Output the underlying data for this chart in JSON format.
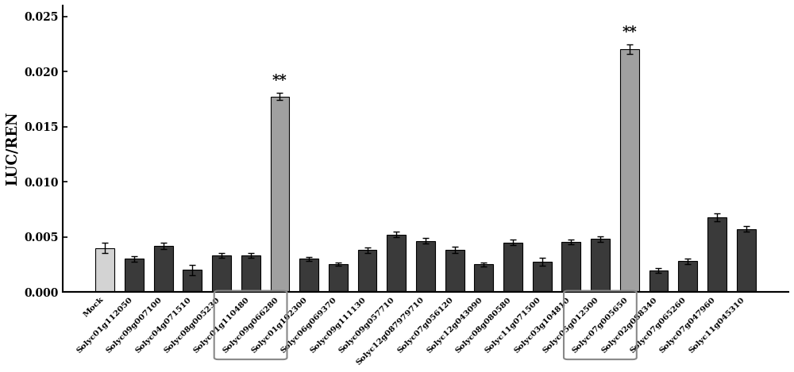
{
  "categories": [
    "Mock",
    "Solyc01g112050",
    "Solyc09g007100",
    "Solyc04g071510",
    "Solyc08g005230",
    "Solyc01g110480",
    "Solyc09g066280",
    "Solyc01g102300",
    "Solyc06g069370",
    "Solyc09g111130",
    "Solyc09g057710",
    "Solyc12g087979710",
    "Solyc07g056120",
    "Solyc12g043090",
    "Solyc08g080580",
    "Solyc11g071500",
    "Solyc03g104810",
    "Solyc05g012500",
    "Solyc07g005650",
    "Solyc02g088340",
    "Solyc07g065260",
    "Solyc07g047960",
    "Solyc11g045310"
  ],
  "values": [
    0.004,
    0.003,
    0.0042,
    0.002,
    0.0033,
    0.0033,
    0.01775,
    0.003,
    0.0025,
    0.0038,
    0.0052,
    0.00465,
    0.0038,
    0.0025,
    0.0045,
    0.00275,
    0.00455,
    0.0048,
    0.02205,
    0.00195,
    0.0028,
    0.0068,
    0.0057
  ],
  "errors": [
    0.00045,
    0.00025,
    0.0003,
    0.00045,
    0.0002,
    0.0002,
    0.00035,
    0.0002,
    0.00015,
    0.00025,
    0.00025,
    0.00025,
    0.0003,
    0.0002,
    0.00025,
    0.00035,
    0.0002,
    0.00025,
    0.00045,
    0.0002,
    0.00025,
    0.00035,
    0.00025
  ],
  "bar_colors": [
    "#d3d3d3",
    "#3a3a3a",
    "#3a3a3a",
    "#3a3a3a",
    "#3a3a3a",
    "#3a3a3a",
    "#a0a0a0",
    "#3a3a3a",
    "#3a3a3a",
    "#3a3a3a",
    "#3a3a3a",
    "#3a3a3a",
    "#3a3a3a",
    "#3a3a3a",
    "#3a3a3a",
    "#3a3a3a",
    "#3a3a3a",
    "#3a3a3a",
    "#a0a0a0",
    "#3a3a3a",
    "#3a3a3a",
    "#3a3a3a",
    "#3a3a3a"
  ],
  "highlighted_indices": [
    6,
    18
  ],
  "star_annotation": "**",
  "ylabel": "LUC/REN",
  "ylim": [
    0,
    0.026
  ],
  "yticks": [
    0.0,
    0.005,
    0.01,
    0.015,
    0.02,
    0.025
  ],
  "ytick_labels": [
    "0.000",
    "0.005",
    "0.010",
    "0.015",
    "0.020",
    "0.025"
  ]
}
